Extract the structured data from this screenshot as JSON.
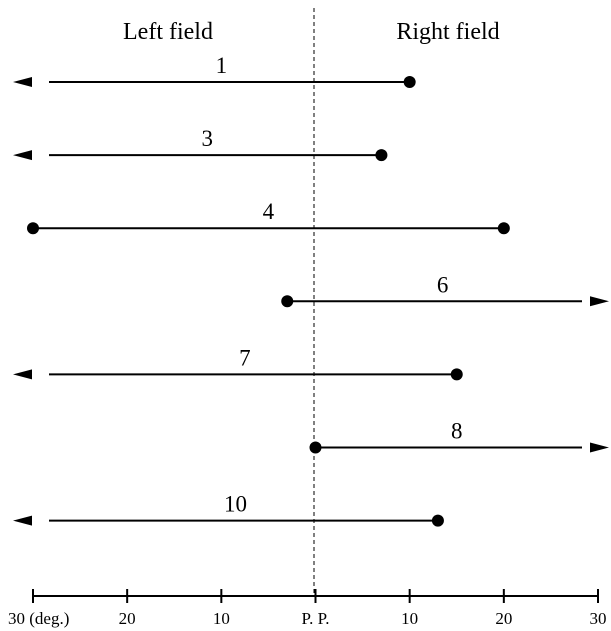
{
  "chart_data": {
    "type": "range",
    "field_labels": {
      "left": "Left field",
      "right": "Right field"
    },
    "x_axis": {
      "range": [
        -30,
        30
      ],
      "ticks": [
        {
          "value": -30,
          "label": "30 (deg.)"
        },
        {
          "value": -20,
          "label": "20"
        },
        {
          "value": -10,
          "label": "10"
        },
        {
          "value": 0,
          "label": "P. P."
        },
        {
          "value": 10,
          "label": "10"
        },
        {
          "value": 20,
          "label": "20"
        },
        {
          "value": 30,
          "label": "30"
        }
      ]
    },
    "reference_line": {
      "value": 0,
      "style": "dashed"
    },
    "rows": [
      {
        "label": "1",
        "start": 10,
        "end": -30,
        "start_marker": "dot",
        "end_marker": "arrow"
      },
      {
        "label": "3",
        "start": 7,
        "end": -30,
        "start_marker": "dot",
        "end_marker": "arrow"
      },
      {
        "label": "4",
        "start": -30,
        "end": 20,
        "start_marker": "dot",
        "end_marker": "dot"
      },
      {
        "label": "6",
        "start": -3,
        "end": 30,
        "start_marker": "dot",
        "end_marker": "arrow"
      },
      {
        "label": "7",
        "start": 15,
        "end": -30,
        "start_marker": "dot",
        "end_marker": "arrow"
      },
      {
        "label": "8",
        "start": 0,
        "end": 30,
        "start_marker": "dot",
        "end_marker": "arrow"
      },
      {
        "label": "10",
        "start": 13,
        "end": -30,
        "start_marker": "dot",
        "end_marker": "arrow"
      }
    ]
  }
}
